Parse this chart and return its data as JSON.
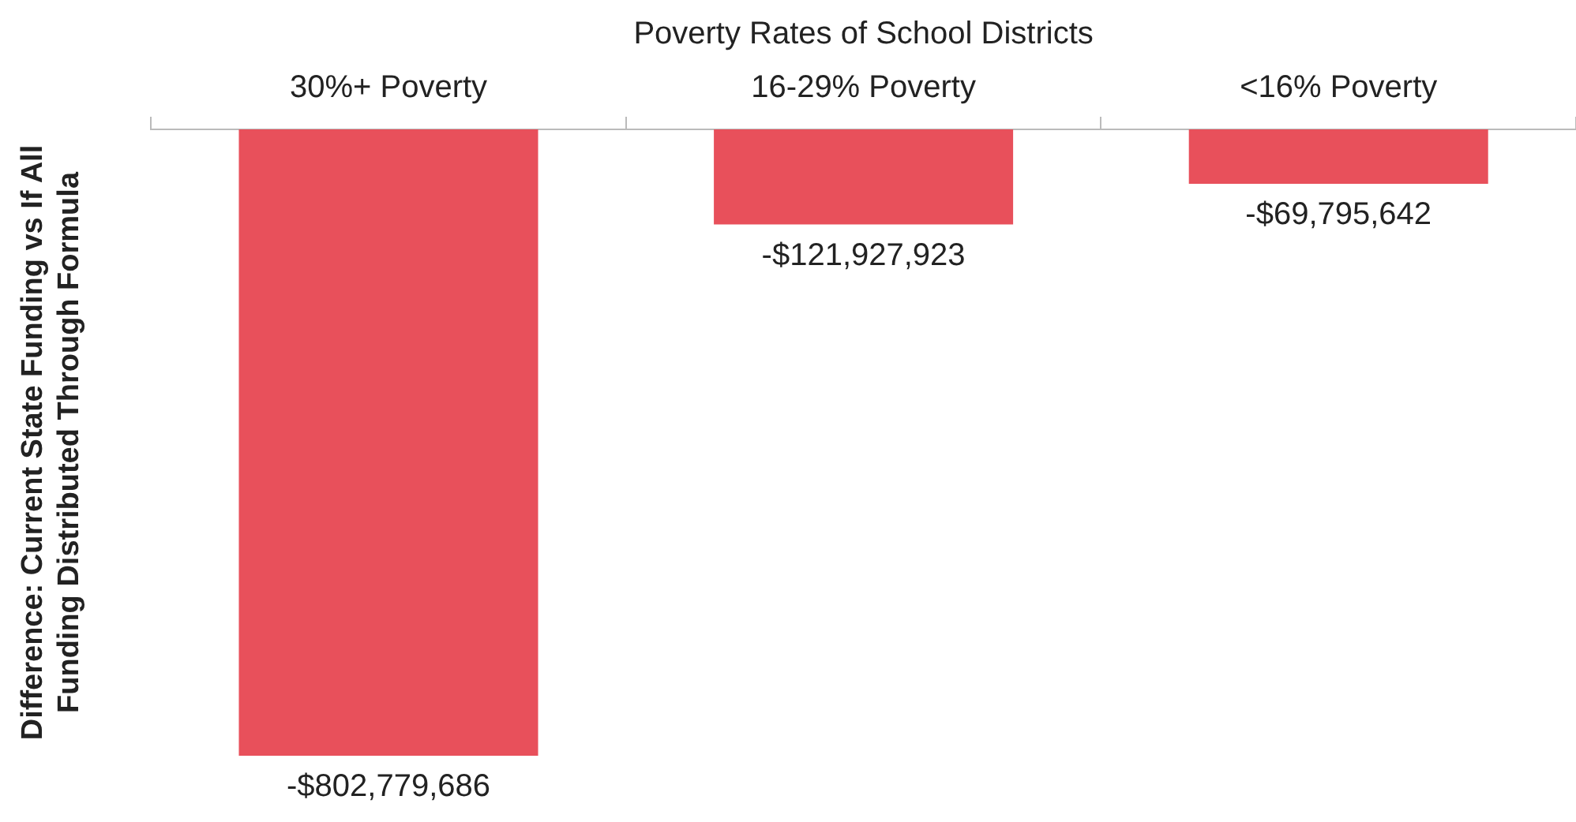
{
  "chart_data": {
    "type": "bar",
    "xlabel": "Poverty Rates of School Districts",
    "ylabel": "Difference: Current State Funding vs If All\nFunding Distributed Through Formula",
    "categories": [
      "30%+ Poverty",
      "16-29% Poverty",
      "<16% Poverty"
    ],
    "values": [
      -802779686,
      -121927923,
      -69795642
    ],
    "value_labels": [
      "-$802,779,686",
      "-$121,927,923",
      "-$69,795,642"
    ],
    "color": "#e8505b",
    "grid": false,
    "legend": false,
    "tick_labels": "x"
  }
}
